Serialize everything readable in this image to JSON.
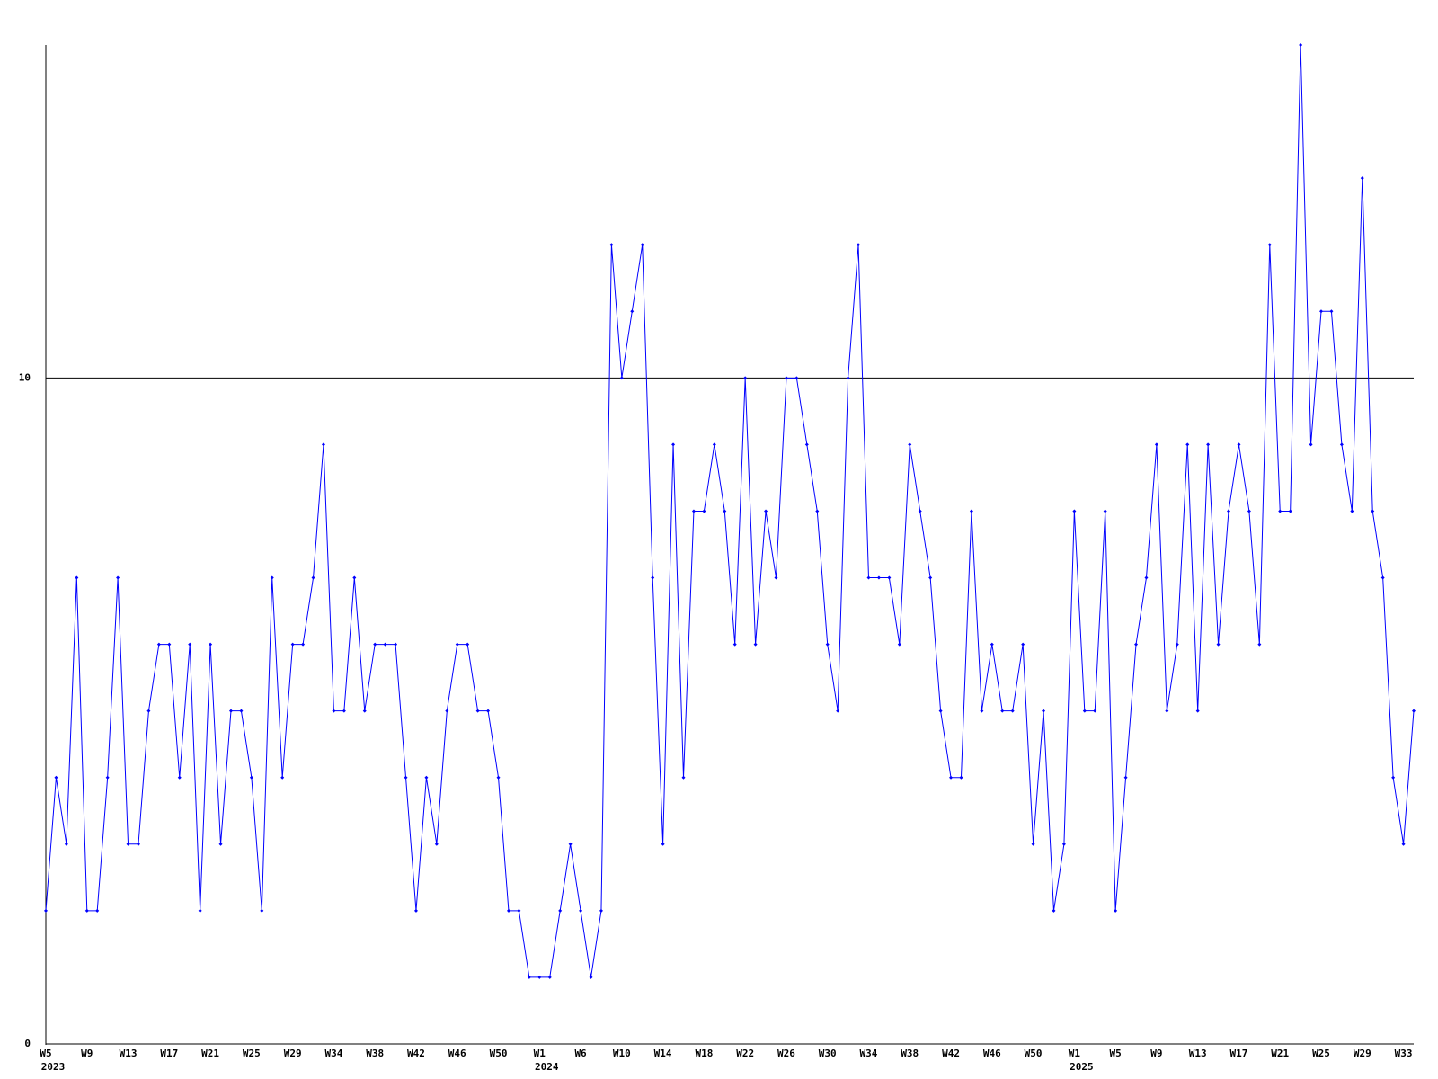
{
  "chart_data": {
    "type": "line",
    "categories": [
      "W5",
      null,
      null,
      null,
      "W9",
      null,
      null,
      null,
      "W13",
      null,
      null,
      null,
      "W17",
      null,
      null,
      null,
      "W21",
      null,
      null,
      null,
      "W25",
      null,
      null,
      null,
      "W29",
      null,
      null,
      null,
      "W34",
      null,
      null,
      null,
      "W38",
      null,
      null,
      null,
      "W42",
      null,
      null,
      null,
      "W46",
      null,
      null,
      null,
      "W50",
      null,
      null,
      null,
      "W1",
      null,
      null,
      null,
      "W6",
      null,
      null,
      null,
      "W10",
      null,
      null,
      null,
      "W14",
      null,
      null,
      null,
      "W18",
      null,
      null,
      null,
      "W22",
      null,
      null,
      null,
      "W26",
      null,
      null,
      null,
      "W30",
      null,
      null,
      null,
      "W34",
      null,
      null,
      null,
      "W38",
      null,
      null,
      null,
      "W42",
      null,
      null,
      null,
      "W46",
      null,
      null,
      null,
      "W50",
      null,
      null,
      null,
      "W1",
      null,
      null,
      null,
      "W5",
      null,
      null,
      null,
      "W9",
      null,
      null,
      null,
      "W13",
      null,
      null,
      null,
      "W17",
      null,
      null,
      null,
      "W21",
      null,
      null,
      null,
      "W25",
      null,
      null,
      null,
      "W29",
      null,
      null,
      null,
      "W33",
      null
    ],
    "category_years": [
      "2023",
      null,
      null,
      null,
      null,
      null,
      null,
      null,
      null,
      null,
      null,
      null,
      null,
      null,
      null,
      null,
      null,
      null,
      null,
      null,
      null,
      null,
      null,
      null,
      null,
      null,
      null,
      null,
      null,
      null,
      null,
      null,
      null,
      null,
      null,
      null,
      null,
      null,
      null,
      null,
      null,
      null,
      null,
      null,
      null,
      null,
      null,
      null,
      "2024",
      null,
      null,
      null,
      null,
      null,
      null,
      null,
      null,
      null,
      null,
      null,
      null,
      null,
      null,
      null,
      null,
      null,
      null,
      null,
      null,
      null,
      null,
      null,
      null,
      null,
      null,
      null,
      null,
      null,
      null,
      null,
      null,
      null,
      null,
      null,
      null,
      null,
      null,
      null,
      null,
      null,
      null,
      null,
      null,
      null,
      null,
      null,
      null,
      null,
      null,
      null,
      "2025",
      null,
      null,
      null,
      null,
      null,
      null,
      null,
      null,
      null,
      null,
      null,
      null,
      null,
      null,
      null,
      null,
      null,
      null,
      null,
      null,
      null,
      null,
      null,
      null,
      null,
      null,
      null,
      null,
      null,
      null,
      null,
      null,
      null
    ],
    "series": [
      {
        "color": "#0000ff",
        "values": [
          2,
          4,
          3,
          7,
          2,
          2,
          4,
          7,
          3,
          3,
          5,
          6,
          6,
          4,
          6,
          2,
          6,
          3,
          5,
          5,
          4,
          2,
          7,
          4,
          6,
          6,
          7,
          9,
          5,
          5,
          7,
          5,
          6,
          6,
          6,
          4,
          2,
          4,
          3,
          5,
          6,
          6,
          5,
          5,
          4,
          2,
          2,
          1,
          1,
          1,
          2,
          3,
          2,
          1,
          2,
          12,
          10,
          11,
          12,
          7,
          3,
          9,
          4,
          8,
          8,
          9,
          8,
          6,
          10,
          6,
          8,
          7,
          10,
          10,
          9,
          8,
          6,
          5,
          10,
          12,
          7,
          7,
          7,
          6,
          9,
          8,
          7,
          5,
          4,
          4,
          8,
          5,
          6,
          5,
          5,
          6,
          3,
          5,
          2,
          3,
          8,
          5,
          5,
          8,
          2,
          4,
          6,
          7,
          9,
          5,
          6,
          9,
          5,
          9,
          6,
          8,
          9,
          8,
          6,
          12,
          8,
          8,
          15,
          9,
          11,
          11,
          9,
          8,
          13,
          8,
          7,
          4,
          3,
          5
        ]
      }
    ],
    "ylim": [
      0,
      15
    ],
    "yticks": [
      0,
      10
    ],
    "grid": true
  }
}
